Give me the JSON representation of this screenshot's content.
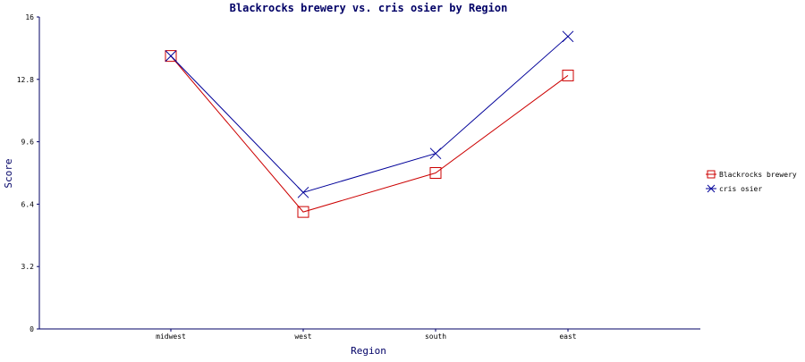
{
  "chart_data": {
    "type": "line",
    "title": "Blackrocks brewery vs. cris osier by Region",
    "xlabel": "Region",
    "ylabel": "Score",
    "categories": [
      "midwest",
      "west",
      "south",
      "east"
    ],
    "ylim": [
      0,
      16
    ],
    "yticks": [
      "0",
      "3.2",
      "6.4",
      "9.6",
      "12.8",
      "16"
    ],
    "grid": false,
    "legend_position": "right",
    "series": [
      {
        "name": "Blackrocks brewery",
        "values": [
          14.0,
          6.0,
          8.0,
          13.0
        ],
        "color": "#cc0000",
        "marker": "square"
      },
      {
        "name": "cris osier",
        "values": [
          14.0,
          7.0,
          9.0,
          15.0
        ],
        "color": "#000099",
        "marker": "x"
      }
    ],
    "axis_color": "#000066"
  }
}
